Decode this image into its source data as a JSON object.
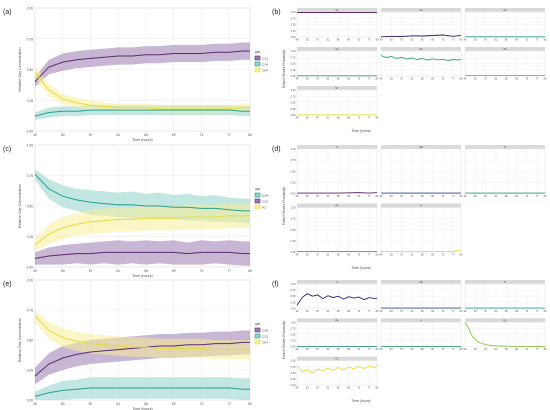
{
  "figure": {
    "panel_labels": [
      "(a)",
      "(b)",
      "(c)",
      "(d)",
      "(e)",
      "(f)"
    ]
  },
  "chart_data": [
    {
      "id": "a",
      "type": "line",
      "xlabel": "Time (hours)",
      "ylabel": "Relative Gas Concentration",
      "xlim": [
        49,
        80
      ],
      "ylim": [
        0,
        1.0
      ],
      "x_ticks": [
        49,
        53,
        57,
        61,
        65,
        69,
        73,
        77,
        80
      ],
      "y_ticks": [
        "0.00",
        "0.25",
        "0.50",
        "0.75",
        "1.00"
      ],
      "grid": true,
      "legend": {
        "title": "gas",
        "placement": "right"
      },
      "x": [
        49,
        51,
        53,
        55,
        57,
        59,
        61,
        63,
        65,
        67,
        69,
        71,
        73,
        75,
        77,
        79,
        80
      ],
      "series": [
        {
          "name": "CO2",
          "color": "#5d2a6e",
          "band": "#9b7cb1",
          "values": [
            0.4,
            0.52,
            0.56,
            0.58,
            0.59,
            0.6,
            0.61,
            0.61,
            0.62,
            0.62,
            0.63,
            0.63,
            0.63,
            0.64,
            0.64,
            0.65,
            0.65
          ],
          "band_halfwidth": [
            0.04,
            0.06,
            0.07,
            0.07,
            0.07,
            0.07,
            0.07,
            0.07,
            0.07,
            0.07,
            0.07,
            0.07,
            0.07,
            0.07,
            0.07,
            0.07,
            0.07
          ]
        },
        {
          "name": "CO4",
          "color": "#2a9d8f",
          "band": "#8fd1cb",
          "values": [
            0.12,
            0.15,
            0.16,
            0.16,
            0.17,
            0.17,
            0.17,
            0.17,
            0.17,
            0.17,
            0.17,
            0.17,
            0.17,
            0.17,
            0.17,
            0.16,
            0.16
          ],
          "band_halfwidth": [
            0.03,
            0.04,
            0.04,
            0.04,
            0.04,
            0.04,
            0.04,
            0.04,
            0.04,
            0.04,
            0.04,
            0.04,
            0.04,
            0.04,
            0.04,
            0.04,
            0.04
          ]
        },
        {
          "name": "CH4",
          "color": "#e8dc3c",
          "band": "#f5ef95",
          "values": [
            0.48,
            0.33,
            0.26,
            0.23,
            0.21,
            0.2,
            0.19,
            0.19,
            0.19,
            0.18,
            0.18,
            0.18,
            0.18,
            0.18,
            0.18,
            0.19,
            0.19
          ],
          "band_halfwidth": [
            0.05,
            0.05,
            0.04,
            0.04,
            0.04,
            0.03,
            0.03,
            0.03,
            0.03,
            0.03,
            0.03,
            0.03,
            0.03,
            0.03,
            0.03,
            0.03,
            0.03
          ]
        }
      ]
    },
    {
      "id": "b",
      "type": "line",
      "facet_grid": true,
      "xlabel": "Time (hours)",
      "ylabel": "Failure Modes Probability",
      "xlim": [
        49,
        80
      ],
      "ylim": [
        0,
        1.0
      ],
      "x_ticks": [
        49,
        53,
        57,
        61,
        65,
        69,
        73,
        77,
        80
      ],
      "y_ticks": [
        "0.00",
        "0.25",
        "0.50",
        "0.75",
        "1.00"
      ],
      "grid": true,
      "facets": [
        {
          "strip": "S1",
          "color": "#5d2a6e",
          "x": [
            49,
            57,
            65,
            73,
            80
          ],
          "values": [
            0.98,
            0.98,
            0.98,
            0.98,
            0.98
          ]
        },
        {
          "strip": "S2",
          "color": "#3b1f6b",
          "x": [
            49,
            53,
            57,
            61,
            65,
            69,
            73,
            77,
            80
          ],
          "values": [
            0.01,
            0.03,
            0.02,
            0.05,
            0.04,
            0.06,
            0.08,
            0.03,
            0.07
          ]
        },
        {
          "strip": "S3",
          "color": "#2a9d8f",
          "x": [
            49,
            57,
            65,
            73,
            80
          ],
          "values": [
            0.01,
            0.01,
            0.01,
            0.01,
            0.01
          ]
        },
        {
          "strip": "S4",
          "color": "#2a9d8f",
          "x": [
            49,
            57,
            65,
            73,
            80
          ],
          "values": [
            0.01,
            0.01,
            0.01,
            0.01,
            0.01
          ]
        },
        {
          "strip": "S5",
          "color": "#3aa568",
          "x": [
            49,
            51,
            53,
            55,
            57,
            59,
            61,
            63,
            65,
            67,
            69,
            71,
            73,
            75,
            77,
            79,
            80
          ],
          "values": [
            0.82,
            0.74,
            0.78,
            0.7,
            0.75,
            0.68,
            0.72,
            0.66,
            0.7,
            0.64,
            0.69,
            0.65,
            0.67,
            0.62,
            0.66,
            0.64,
            0.67
          ]
        },
        {
          "strip": "S6",
          "color": "#8cc63f",
          "x": [
            49,
            57,
            65,
            73,
            80
          ],
          "values": [
            0.02,
            0.02,
            0.02,
            0.02,
            0.02
          ]
        },
        {
          "strip": "S7",
          "color": "#e8dc3c",
          "x": [
            49,
            57,
            65,
            73,
            80
          ],
          "values": [
            0.01,
            0.01,
            0.01,
            0.01,
            0.01
          ]
        }
      ]
    },
    {
      "id": "c",
      "type": "line",
      "xlabel": "Time (hours)",
      "ylabel": "Relative Gas Concentration",
      "xlim": [
        49,
        80
      ],
      "ylim": [
        0,
        1.0
      ],
      "x_ticks": [
        49,
        53,
        57,
        61,
        65,
        69,
        73,
        77,
        80
      ],
      "y_ticks": [
        "0.00",
        "0.25",
        "0.50",
        "0.75",
        "1.00"
      ],
      "grid": true,
      "legend": {
        "title": "gas",
        "placement": "right"
      },
      "x": [
        49,
        51,
        53,
        55,
        57,
        59,
        61,
        63,
        65,
        67,
        69,
        71,
        73,
        75,
        77,
        79,
        80
      ],
      "series": [
        {
          "name": "CO4",
          "color": "#2a9d8f",
          "band": "#8fd1cb",
          "values": [
            0.76,
            0.64,
            0.58,
            0.55,
            0.53,
            0.52,
            0.51,
            0.51,
            0.5,
            0.5,
            0.49,
            0.49,
            0.48,
            0.48,
            0.47,
            0.46,
            0.46
          ],
          "band_halfwidth": [
            0.04,
            0.08,
            0.09,
            0.09,
            0.1,
            0.1,
            0.1,
            0.11,
            0.1,
            0.11,
            0.1,
            0.11,
            0.1,
            0.11,
            0.1,
            0.1,
            0.1
          ]
        },
        {
          "name": "CO2",
          "color": "#5d2a6e",
          "band": "#9b7cb1",
          "values": [
            0.07,
            0.09,
            0.1,
            0.11,
            0.11,
            0.12,
            0.12,
            0.12,
            0.12,
            0.12,
            0.12,
            0.11,
            0.12,
            0.12,
            0.12,
            0.11,
            0.11
          ],
          "band_halfwidth": [
            0.05,
            0.07,
            0.08,
            0.08,
            0.09,
            0.09,
            0.1,
            0.09,
            0.1,
            0.09,
            0.1,
            0.09,
            0.1,
            0.09,
            0.1,
            0.1,
            0.1
          ]
        },
        {
          "name": "H2",
          "color": "#e8dc3c",
          "band": "#f5ef95",
          "values": [
            0.18,
            0.27,
            0.32,
            0.35,
            0.37,
            0.38,
            0.39,
            0.39,
            0.4,
            0.4,
            0.4,
            0.41,
            0.41,
            0.41,
            0.42,
            0.42,
            0.42
          ],
          "band_halfwidth": [
            0.05,
            0.08,
            0.09,
            0.09,
            0.1,
            0.1,
            0.1,
            0.1,
            0.1,
            0.1,
            0.1,
            0.1,
            0.1,
            0.1,
            0.1,
            0.1,
            0.1
          ]
        }
      ]
    },
    {
      "id": "d",
      "type": "line",
      "facet_grid": true,
      "xlabel": "Time (hours)",
      "ylabel": "Failure Modes Probability",
      "xlim": [
        49,
        80
      ],
      "ylim": [
        0,
        1.0
      ],
      "x_ticks": [
        49,
        53,
        57,
        61,
        65,
        69,
        73,
        77,
        80
      ],
      "y_ticks": [
        "0.00",
        "0.25",
        "0.50",
        "0.75",
        "1.00"
      ],
      "grid": true,
      "facets": [
        {
          "strip": "S",
          "color": "#5d2a6e",
          "x": [
            49,
            57,
            65,
            73,
            77,
            80
          ],
          "values": [
            0.01,
            0.01,
            0.01,
            0.02,
            0.01,
            0.02
          ]
        },
        {
          "strip": "AB",
          "color": "#2f4c8a",
          "x": [
            49,
            57,
            65,
            73,
            80
          ],
          "values": [
            0.01,
            0.01,
            0.01,
            0.01,
            0.01
          ]
        },
        {
          "strip": "P",
          "color": "#2a9d8f",
          "x": [
            49,
            57,
            65,
            73,
            80
          ],
          "values": [
            0.01,
            0.01,
            0.01,
            0.01,
            0.01
          ]
        },
        {
          "strip": "PA",
          "color": "#3aa568",
          "x": [
            49,
            57,
            65,
            73,
            80
          ],
          "values": [
            0.01,
            0.01,
            0.01,
            0.01,
            0.01
          ]
        },
        {
          "strip": "A",
          "color": "#e8dc3c",
          "x": [
            49,
            57,
            65,
            73,
            77,
            80
          ],
          "values": [
            0.01,
            0.01,
            0.01,
            0.01,
            0.01,
            0.05
          ]
        }
      ]
    },
    {
      "id": "e",
      "type": "line",
      "xlabel": "Time (hours)",
      "ylabel": "Relative Gas Concentration",
      "xlim": [
        49,
        80
      ],
      "ylim": [
        0,
        1.0
      ],
      "x_ticks": [
        49,
        53,
        57,
        61,
        65,
        69,
        73,
        77,
        80
      ],
      "y_ticks": [
        "0.00",
        "0.25",
        "0.50",
        "0.75",
        "1.00"
      ],
      "grid": true,
      "legend": {
        "title": "gas",
        "placement": "right"
      },
      "x": [
        49,
        51,
        53,
        55,
        57,
        59,
        61,
        63,
        65,
        67,
        69,
        71,
        73,
        75,
        77,
        79,
        80
      ],
      "series": [
        {
          "name": "CO4",
          "color": "#5d2a6e",
          "band": "#9b7cb1",
          "values": [
            0.2,
            0.3,
            0.35,
            0.38,
            0.4,
            0.41,
            0.42,
            0.43,
            0.44,
            0.45,
            0.45,
            0.46,
            0.46,
            0.47,
            0.47,
            0.48,
            0.48
          ],
          "band_halfwidth": [
            0.07,
            0.09,
            0.1,
            0.1,
            0.1,
            0.1,
            0.1,
            0.1,
            0.1,
            0.1,
            0.1,
            0.1,
            0.1,
            0.1,
            0.1,
            0.1,
            0.1
          ]
        },
        {
          "name": "CO2",
          "color": "#2a9d8f",
          "band": "#8fd1cb",
          "values": [
            0.03,
            0.06,
            0.08,
            0.09,
            0.1,
            0.1,
            0.1,
            0.1,
            0.1,
            0.1,
            0.1,
            0.1,
            0.1,
            0.1,
            0.1,
            0.09,
            0.09
          ],
          "band_halfwidth": [
            0.04,
            0.06,
            0.08,
            0.08,
            0.09,
            0.09,
            0.09,
            0.09,
            0.09,
            0.09,
            0.09,
            0.09,
            0.09,
            0.09,
            0.09,
            0.09,
            0.09
          ]
        },
        {
          "name": "CH4",
          "color": "#e8dc3c",
          "band": "#f5ef95",
          "values": [
            0.7,
            0.58,
            0.52,
            0.49,
            0.47,
            0.46,
            0.45,
            0.44,
            0.44,
            0.43,
            0.43,
            0.43,
            0.43,
            0.42,
            0.42,
            0.42,
            0.42
          ],
          "band_halfwidth": [
            0.05,
            0.07,
            0.08,
            0.08,
            0.08,
            0.08,
            0.08,
            0.08,
            0.08,
            0.08,
            0.08,
            0.08,
            0.08,
            0.08,
            0.08,
            0.08,
            0.08
          ]
        }
      ]
    },
    {
      "id": "f",
      "type": "line",
      "facet_grid": true,
      "xlabel": "Time (hours)",
      "ylabel": "Failure Modes Probability",
      "xlim": [
        49,
        80
      ],
      "ylim": [
        0,
        1.0
      ],
      "x_ticks": [
        49,
        53,
        57,
        61,
        65,
        69,
        73,
        77,
        80
      ],
      "y_ticks": [
        "0.00",
        "0.25",
        "0.50",
        "0.75",
        "1.00"
      ],
      "grid": true,
      "facets": [
        {
          "strip": "S",
          "color": "#3b1f6b",
          "x": [
            49,
            51,
            53,
            55,
            57,
            59,
            61,
            63,
            65,
            67,
            69,
            71,
            73,
            75,
            77,
            79,
            80
          ],
          "values": [
            0.12,
            0.45,
            0.6,
            0.5,
            0.55,
            0.4,
            0.52,
            0.44,
            0.5,
            0.38,
            0.48,
            0.42,
            0.46,
            0.36,
            0.44,
            0.4,
            0.42
          ]
        },
        {
          "strip": "AB",
          "color": "#2f4c8a",
          "x": [
            49,
            57,
            65,
            73,
            80
          ],
          "values": [
            0.01,
            0.01,
            0.01,
            0.01,
            0.01
          ]
        },
        {
          "strip": "P",
          "color": "#2a9d8f",
          "x": [
            49,
            57,
            65,
            73,
            80
          ],
          "values": [
            0.01,
            0.01,
            0.01,
            0.01,
            0.01
          ]
        },
        {
          "strip": "PA",
          "color": "#2a9d8f",
          "x": [
            49,
            57,
            65,
            73,
            80
          ],
          "values": [
            0.01,
            0.01,
            0.01,
            0.01,
            0.01
          ]
        },
        {
          "strip": "A",
          "color": "#3aa568",
          "x": [
            49,
            57,
            65,
            73,
            80
          ],
          "values": [
            0.01,
            0.01,
            0.01,
            0.01,
            0.01
          ]
        },
        {
          "strip": "D1",
          "color": "#8cc63f",
          "x": [
            49,
            50,
            51,
            52,
            53,
            54,
            55,
            56,
            57,
            59,
            61,
            65,
            69,
            73,
            77,
            80
          ],
          "values": [
            0.98,
            0.85,
            0.6,
            0.4,
            0.3,
            0.2,
            0.15,
            0.12,
            0.08,
            0.05,
            0.03,
            0.02,
            0.01,
            0.01,
            0.01,
            0.01
          ]
        },
        {
          "strip": "D2",
          "color": "#e8dc3c",
          "x": [
            49,
            51,
            53,
            55,
            57,
            59,
            61,
            63,
            65,
            67,
            69,
            71,
            73,
            75,
            77,
            79,
            80
          ],
          "values": [
            0.78,
            0.55,
            0.62,
            0.5,
            0.66,
            0.58,
            0.7,
            0.6,
            0.72,
            0.62,
            0.74,
            0.66,
            0.76,
            0.68,
            0.78,
            0.7,
            0.8
          ]
        }
      ]
    }
  ]
}
